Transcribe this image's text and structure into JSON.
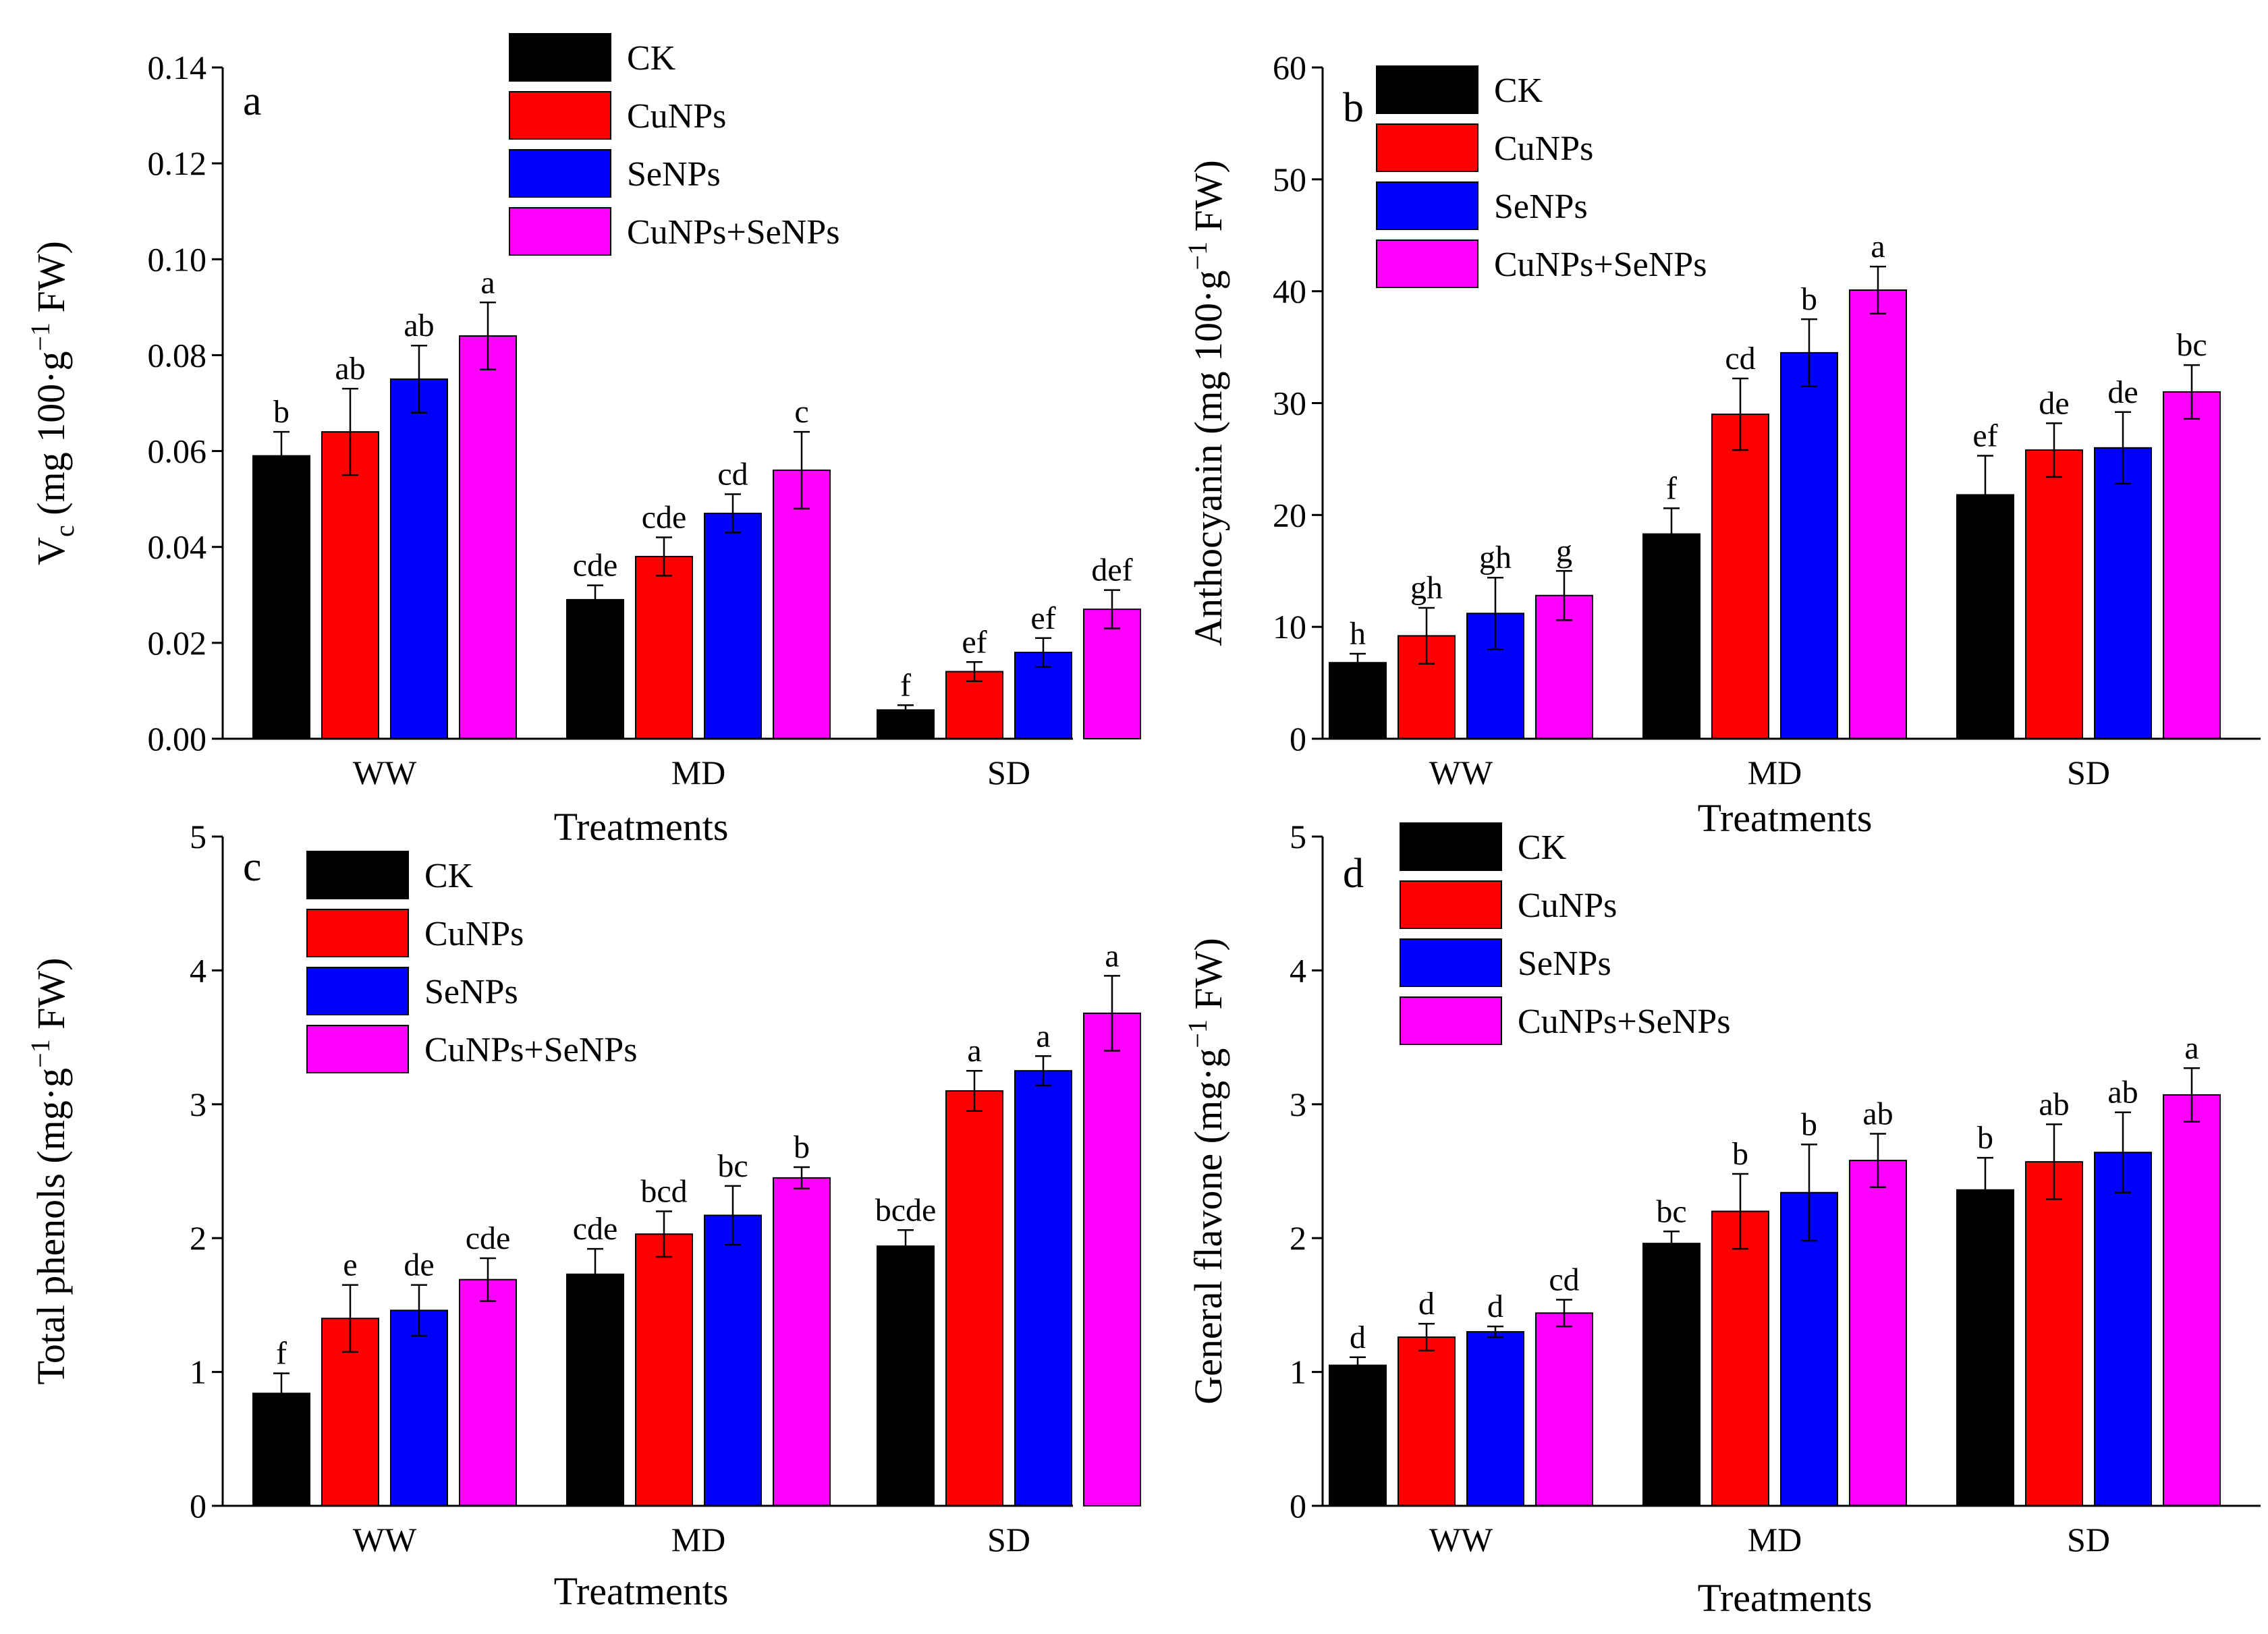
{
  "chart_data": [
    {
      "id": "a",
      "type": "bar",
      "panel_label": "a",
      "title": "",
      "ylabel_main": "V",
      "ylabel_sub": "c",
      "ylabel_rest": " (mg 100·g",
      "ylabel_sup": "−1",
      "ylabel_end": " FW)",
      "xlabel": "Treatments",
      "categories": [
        "WW",
        "MD",
        "SD"
      ],
      "ylim": [
        0,
        0.14
      ],
      "yticks": [
        "0.00",
        "0.02",
        "0.04",
        "0.06",
        "0.08",
        "0.10",
        "0.12",
        "0.14"
      ],
      "legend_position": "top-center",
      "series": [
        {
          "name": "CK",
          "color": "#000000",
          "values": [
            0.059,
            0.029,
            0.006
          ],
          "errors": [
            0.005,
            0.003,
            0.001
          ],
          "letters": [
            "b",
            "cde",
            "f"
          ]
        },
        {
          "name": "CuNPs",
          "color": "#ff0000",
          "values": [
            0.064,
            0.038,
            0.014
          ],
          "errors": [
            0.009,
            0.004,
            0.002
          ],
          "letters": [
            "ab",
            "cde",
            "ef"
          ]
        },
        {
          "name": "SeNPs",
          "color": "#0000ff",
          "values": [
            0.075,
            0.047,
            0.018
          ],
          "errors": [
            0.007,
            0.004,
            0.003
          ],
          "letters": [
            "ab",
            "cd",
            "ef"
          ]
        },
        {
          "name": "CuNPs+SeNPs",
          "color": "#ff00ff",
          "values": [
            0.084,
            0.056,
            0.027
          ],
          "errors": [
            0.007,
            0.008,
            0.004
          ],
          "letters": [
            "a",
            "c",
            "def"
          ]
        }
      ]
    },
    {
      "id": "b",
      "type": "bar",
      "panel_label": "b",
      "title": "",
      "ylabel_main": "Anthocyanin",
      "ylabel_sub": "",
      "ylabel_rest": " (mg 100·g",
      "ylabel_sup": "−1",
      "ylabel_end": " FW)",
      "xlabel": "Treatments",
      "categories": [
        "WW",
        "MD",
        "SD"
      ],
      "ylim": [
        0,
        60
      ],
      "yticks": [
        "0",
        "10",
        "20",
        "30",
        "40",
        "50",
        "60"
      ],
      "legend_position": "top-center",
      "series": [
        {
          "name": "CK",
          "color": "#000000",
          "values": [
            6.8,
            18.3,
            21.8
          ],
          "errors": [
            0.8,
            2.3,
            3.5
          ],
          "letters": [
            "h",
            "f",
            "ef"
          ]
        },
        {
          "name": "CuNPs",
          "color": "#ff0000",
          "values": [
            9.2,
            29.0,
            25.8
          ],
          "errors": [
            2.5,
            3.2,
            2.4
          ],
          "letters": [
            "gh",
            "cd",
            "de"
          ]
        },
        {
          "name": "SeNPs",
          "color": "#0000ff",
          "values": [
            11.2,
            34.5,
            26.0
          ],
          "errors": [
            3.2,
            3.0,
            3.2
          ],
          "letters": [
            "gh",
            "b",
            "de"
          ]
        },
        {
          "name": "CuNPs+SeNPs",
          "color": "#ff00ff",
          "values": [
            12.8,
            40.1,
            31.0
          ],
          "errors": [
            2.2,
            2.1,
            2.4
          ],
          "letters": [
            "g",
            "a",
            "bc"
          ]
        }
      ]
    },
    {
      "id": "c",
      "type": "bar",
      "panel_label": "c",
      "title": "",
      "ylabel_main": "Total phenols",
      "ylabel_sub": "",
      "ylabel_rest": " (mg·g",
      "ylabel_sup": "−1",
      "ylabel_end": " FW)",
      "xlabel": "Treatments",
      "categories": [
        "WW",
        "MD",
        "SD"
      ],
      "ylim": [
        0,
        5
      ],
      "yticks": [
        "0",
        "1",
        "2",
        "3",
        "4",
        "5"
      ],
      "legend_position": "top-left",
      "series": [
        {
          "name": "CK",
          "color": "#000000",
          "values": [
            0.84,
            1.73,
            1.94
          ],
          "errors": [
            0.15,
            0.19,
            0.12
          ],
          "letters": [
            "f",
            "cde",
            "bcde"
          ]
        },
        {
          "name": "CuNPs",
          "color": "#ff0000",
          "values": [
            1.4,
            2.03,
            3.1
          ],
          "errors": [
            0.25,
            0.17,
            0.15
          ],
          "letters": [
            "e",
            "bcd",
            "a"
          ]
        },
        {
          "name": "SeNPs",
          "color": "#0000ff",
          "values": [
            1.46,
            2.17,
            3.25
          ],
          "errors": [
            0.19,
            0.22,
            0.11
          ],
          "letters": [
            "de",
            "bc",
            "a"
          ]
        },
        {
          "name": "CuNPs+SeNPs",
          "color": "#ff00ff",
          "values": [
            1.69,
            2.45,
            3.68
          ],
          "errors": [
            0.16,
            0.08,
            0.28
          ],
          "letters": [
            "cde",
            "b",
            "a"
          ]
        }
      ]
    },
    {
      "id": "d",
      "type": "bar",
      "panel_label": "d",
      "title": "",
      "ylabel_main": "General flavone",
      "ylabel_sub": "",
      "ylabel_rest": " (mg·g",
      "ylabel_sup": "−1",
      "ylabel_end": " FW)",
      "xlabel": "Treatments",
      "categories": [
        "WW",
        "MD",
        "SD"
      ],
      "ylim": [
        0,
        5
      ],
      "yticks": [
        "0",
        "1",
        "2",
        "3",
        "4",
        "5"
      ],
      "legend_position": "top-center",
      "series": [
        {
          "name": "CK",
          "color": "#000000",
          "values": [
            1.05,
            1.96,
            2.36
          ],
          "errors": [
            0.06,
            0.09,
            0.24
          ],
          "letters": [
            "d",
            "bc",
            "b"
          ]
        },
        {
          "name": "CuNPs",
          "color": "#ff0000",
          "values": [
            1.26,
            2.2,
            2.57
          ],
          "errors": [
            0.1,
            0.28,
            0.28
          ],
          "letters": [
            "d",
            "b",
            "ab"
          ]
        },
        {
          "name": "SeNPs",
          "color": "#0000ff",
          "values": [
            1.3,
            2.34,
            2.64
          ],
          "errors": [
            0.04,
            0.36,
            0.3
          ],
          "letters": [
            "d",
            "b",
            "ab"
          ]
        },
        {
          "name": "CuNPs+SeNPs",
          "color": "#ff00ff",
          "values": [
            1.44,
            2.58,
            3.07
          ],
          "errors": [
            0.1,
            0.2,
            0.2
          ],
          "letters": [
            "cd",
            "ab",
            "a"
          ]
        }
      ]
    }
  ]
}
